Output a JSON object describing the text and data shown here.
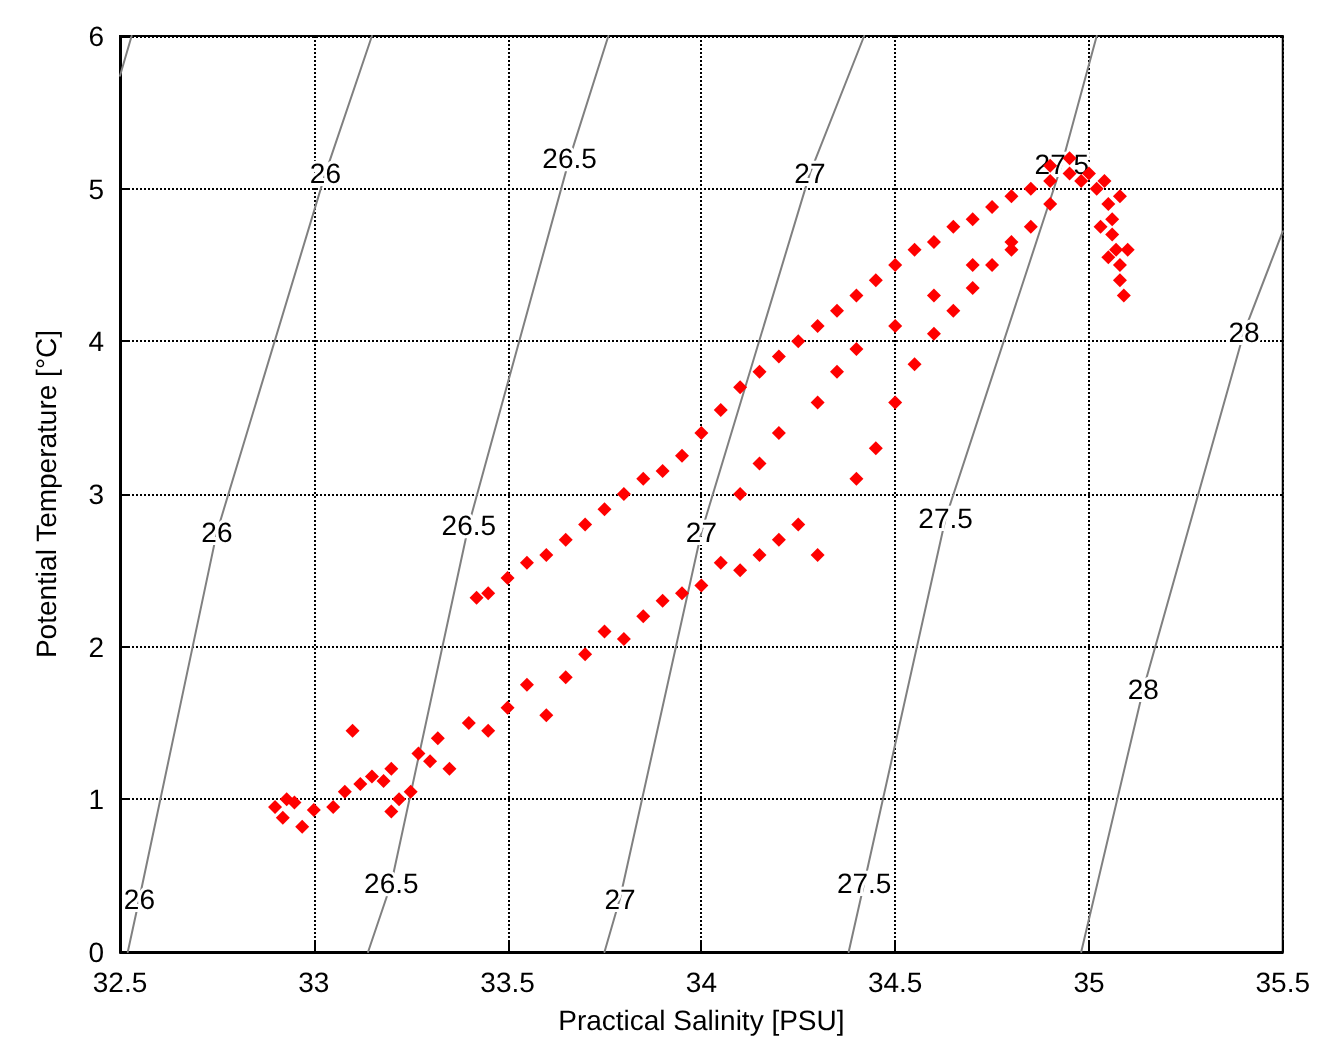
{
  "chart_data": {
    "type": "scatter",
    "xlabel": "Practical Salinity [PSU]",
    "ylabel": "Potential Temperature [°C]",
    "xlim": [
      32.5,
      35.5
    ],
    "xticks": [
      32.5,
      33,
      33.5,
      34,
      34.5,
      35,
      35.5
    ],
    "ylim": [
      0,
      6
    ],
    "yticks": [
      0,
      1,
      2,
      3,
      4,
      5,
      6
    ],
    "grid": true,
    "marker": "diamond",
    "legend": false,
    "series": [
      {
        "type": "line",
        "marker": "none",
        "color": "#808080",
        "x": [
          32.5,
          32.53
        ],
        "values": [
          5.74,
          6
        ]
      },
      {
        "type": "line",
        "marker": "none",
        "name": "26",
        "color": "#808080",
        "x": [
          32.52,
          32.55,
          32.75,
          33.03,
          33.15
        ],
        "values": [
          0,
          0.35,
          2.75,
          5.1,
          6
        ]
      },
      {
        "type": "line",
        "marker": "none",
        "name": "26.5",
        "color": "#808080",
        "x": [
          33.14,
          33.2,
          33.4,
          33.66,
          33.76
        ],
        "values": [
          0,
          0.45,
          2.8,
          5.2,
          6
        ]
      },
      {
        "type": "line",
        "marker": "none",
        "name": "27",
        "color": "#808080",
        "x": [
          33.75,
          33.79,
          34.0,
          34.28,
          34.42
        ],
        "values": [
          0,
          0.35,
          2.75,
          5.1,
          6
        ]
      },
      {
        "type": "line",
        "marker": "none",
        "name": "27.5",
        "color": "#808080",
        "x": [
          34.38,
          34.42,
          34.63,
          34.93,
          35.02
        ],
        "values": [
          0,
          0.45,
          2.84,
          5.16,
          6
        ]
      },
      {
        "type": "line",
        "marker": "none",
        "name": "28",
        "color": "#808080",
        "x": [
          34.98,
          35.14,
          35.4,
          35.5
        ],
        "values": [
          0,
          1.72,
          4.06,
          4.72
        ]
      },
      {
        "color": "#ff0000",
        "x": [
          32.9,
          32.92,
          32.95,
          32.97,
          32.93,
          33.0,
          33.05,
          33.08,
          33.12,
          33.15,
          33.18,
          33.2,
          33.1,
          33.22,
          33.25,
          33.2,
          33.27,
          33.3,
          33.32,
          33.35,
          33.4,
          33.45,
          33.5,
          33.55,
          33.6,
          33.65,
          33.7,
          33.75,
          33.8,
          33.85,
          33.9,
          33.95,
          34.0,
          34.05,
          34.1,
          34.15,
          34.2,
          34.25,
          34.3,
          34.4,
          34.45,
          34.5,
          34.55,
          34.6,
          34.65,
          34.7,
          34.75,
          34.8,
          34.85,
          34.9,
          33.42,
          33.45,
          33.5,
          33.55,
          33.6,
          33.65,
          33.7,
          33.75,
          33.8,
          33.85,
          33.9,
          33.95,
          34.0,
          34.05,
          34.1,
          34.15,
          34.2,
          34.25,
          34.3,
          34.35,
          34.4,
          34.45,
          34.5,
          34.55,
          34.6,
          34.65,
          34.7,
          34.75,
          34.8,
          34.85,
          34.9,
          34.95,
          34.95,
          34.9,
          34.1,
          34.15,
          34.2,
          34.3,
          34.35,
          34.4,
          34.5,
          34.6,
          34.7,
          34.8,
          35.0,
          35.02,
          35.05,
          35.06,
          35.06,
          35.07,
          35.08,
          35.08,
          35.09,
          35.04,
          35.08,
          35.1,
          34.98,
          35.03,
          35.05
        ],
        "values": [
          0.95,
          0.88,
          0.98,
          0.82,
          1.0,
          0.93,
          0.95,
          1.05,
          1.1,
          1.15,
          1.12,
          1.2,
          1.45,
          1.0,
          1.05,
          0.92,
          1.3,
          1.25,
          1.4,
          1.2,
          1.5,
          1.45,
          1.6,
          1.75,
          1.55,
          1.8,
          1.95,
          2.1,
          2.05,
          2.2,
          2.3,
          2.35,
          2.4,
          2.55,
          2.5,
          2.6,
          2.7,
          2.8,
          2.6,
          3.1,
          3.3,
          3.6,
          3.85,
          4.05,
          4.2,
          4.35,
          4.5,
          4.6,
          4.75,
          4.9,
          2.32,
          2.35,
          2.45,
          2.55,
          2.6,
          2.7,
          2.8,
          2.9,
          3.0,
          3.1,
          3.15,
          3.25,
          3.4,
          3.55,
          3.7,
          3.8,
          3.9,
          4.0,
          4.1,
          4.2,
          4.3,
          4.4,
          4.5,
          4.6,
          4.65,
          4.75,
          4.8,
          4.88,
          4.95,
          5.0,
          5.05,
          5.1,
          5.2,
          5.15,
          3.0,
          3.2,
          3.4,
          3.6,
          3.8,
          3.95,
          4.1,
          4.3,
          4.5,
          4.65,
          5.1,
          5.0,
          4.9,
          4.8,
          4.7,
          4.6,
          4.5,
          4.4,
          4.3,
          5.05,
          4.95,
          4.6,
          5.05,
          4.75,
          4.55
        ]
      }
    ]
  }
}
